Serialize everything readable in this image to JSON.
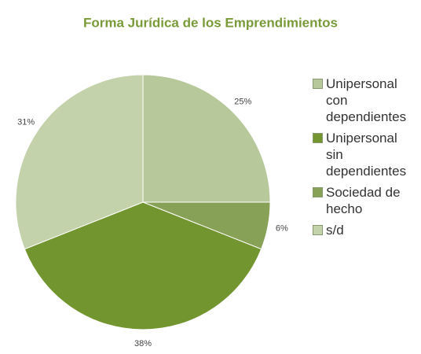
{
  "chart_data": {
    "type": "pie",
    "title": "Forma Jurídica de los Emprendimientos",
    "categories": [
      "Unipersonal con dependientes",
      "Unipersonal sin dependientes",
      "Sociedad de hecho",
      "s/d"
    ],
    "values": [
      25,
      38,
      6,
      31
    ],
    "value_labels": [
      "25%",
      "38%",
      "6%",
      "31%"
    ],
    "colors": [
      "#b7c99a",
      "#739530",
      "#87a257",
      "#c3d2aa"
    ],
    "legend": "right"
  }
}
